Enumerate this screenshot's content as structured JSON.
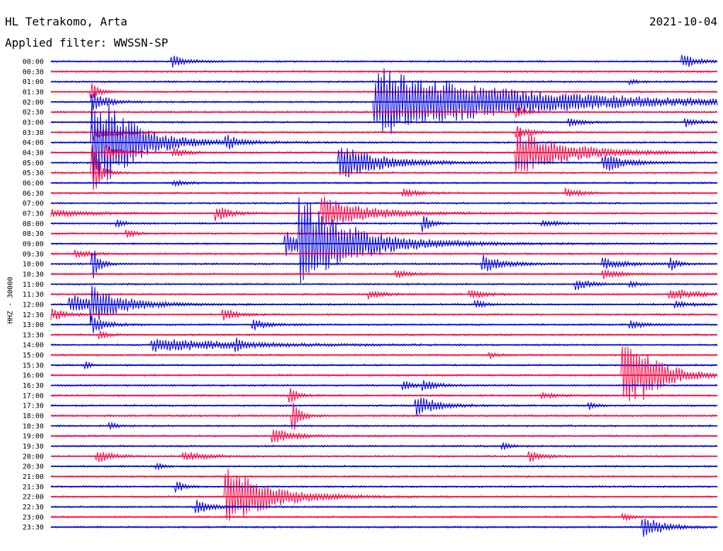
{
  "header": {
    "station": "HL Tetrakomo, Arta",
    "date": "2021-10-04",
    "filter": "Applied filter: WWSSN-SP"
  },
  "chart_data": {
    "type": "line",
    "title": "HL Tetrakomo, Arta",
    "ylabel": "HHZ - 30000",
    "row_labels": [
      "00:00",
      "00:30",
      "01:00",
      "01:30",
      "02:00",
      "02:30",
      "03:00",
      "03:30",
      "04:00",
      "04:30",
      "05:00",
      "05:30",
      "06:00",
      "06:30",
      "07:00",
      "07:30",
      "08:00",
      "08:30",
      "09:00",
      "09:30",
      "10:00",
      "10:30",
      "11:00",
      "11:30",
      "12:00",
      "12:30",
      "13:00",
      "13:30",
      "14:00",
      "15:00",
      "15:30",
      "16:00",
      "16:30",
      "17:00",
      "17:30",
      "18:00",
      "18:30",
      "19:00",
      "19:30",
      "20:00",
      "20:30",
      "21:00",
      "21:30",
      "22:00",
      "22:30",
      "23:00",
      "23:30"
    ],
    "colors": [
      "#0000e0",
      "#ff0040"
    ],
    "x_range_minutes": [
      0,
      30
    ],
    "events": [
      {
        "row": 0,
        "t": 0.183,
        "amp": 8,
        "dur": 0.02
      },
      {
        "row": 0,
        "t": 0.95,
        "amp": 9,
        "dur": 0.02
      },
      {
        "row": 2,
        "t": 0.87,
        "amp": 3,
        "dur": 0.01
      },
      {
        "row": 3,
        "t": 0.062,
        "amp": 12,
        "dur": 0.01
      },
      {
        "row": 4,
        "t": 0.487,
        "amp": 50,
        "dur": 0.2
      },
      {
        "row": 4,
        "t": 0.065,
        "amp": 15,
        "dur": 0.02
      },
      {
        "row": 5,
        "t": 0.7,
        "amp": 10,
        "dur": 0.01
      },
      {
        "row": 6,
        "t": 0.78,
        "amp": 5,
        "dur": 0.02
      },
      {
        "row": 6,
        "t": 0.955,
        "amp": 6,
        "dur": 0.02
      },
      {
        "row": 7,
        "t": 0.064,
        "amp": 12,
        "dur": 0.03
      },
      {
        "row": 7,
        "t": 0.7,
        "amp": 8,
        "dur": 0.02
      },
      {
        "row": 8,
        "t": 0.064,
        "amp": 60,
        "dur": 0.06
      },
      {
        "row": 8,
        "t": 0.087,
        "amp": 18,
        "dur": 0.03
      },
      {
        "row": 8,
        "t": 0.265,
        "amp": 8,
        "dur": 0.02
      },
      {
        "row": 9,
        "t": 0.7,
        "amp": 35,
        "dur": 0.07
      },
      {
        "row": 9,
        "t": 0.085,
        "amp": 10,
        "dur": 0.02
      },
      {
        "row": 9,
        "t": 0.185,
        "amp": 6,
        "dur": 0.02
      },
      {
        "row": 10,
        "t": 0.435,
        "amp": 25,
        "dur": 0.06
      },
      {
        "row": 10,
        "t": 0.83,
        "amp": 14,
        "dur": 0.03
      },
      {
        "row": 11,
        "t": 0.065,
        "amp": 40,
        "dur": 0.01
      },
      {
        "row": 12,
        "t": 0.185,
        "amp": 4,
        "dur": 0.02
      },
      {
        "row": 13,
        "t": 0.53,
        "amp": 6,
        "dur": 0.02
      },
      {
        "row": 13,
        "t": 0.775,
        "amp": 6,
        "dur": 0.02
      },
      {
        "row": 15,
        "t": 0.003,
        "amp": 5,
        "dur": 0.05
      },
      {
        "row": 15,
        "t": 0.41,
        "amp": 25,
        "dur": 0.06
      },
      {
        "row": 15,
        "t": 0.25,
        "amp": 10,
        "dur": 0.02
      },
      {
        "row": 16,
        "t": 0.1,
        "amp": 5,
        "dur": 0.01
      },
      {
        "row": 16,
        "t": 0.56,
        "amp": 12,
        "dur": 0.01
      },
      {
        "row": 16,
        "t": 0.74,
        "amp": 5,
        "dur": 0.02
      },
      {
        "row": 17,
        "t": 0.115,
        "amp": 7,
        "dur": 0.01
      },
      {
        "row": 18,
        "t": 0.375,
        "amp": 60,
        "dur": 0.08
      },
      {
        "row": 18,
        "t": 0.355,
        "amp": 18,
        "dur": 0.04
      },
      {
        "row": 19,
        "t": 0.04,
        "amp": 5,
        "dur": 0.02
      },
      {
        "row": 20,
        "t": 0.065,
        "amp": 20,
        "dur": 0.01
      },
      {
        "row": 20,
        "t": 0.65,
        "amp": 12,
        "dur": 0.03
      },
      {
        "row": 20,
        "t": 0.83,
        "amp": 8,
        "dur": 0.03
      },
      {
        "row": 20,
        "t": 0.93,
        "amp": 10,
        "dur": 0.01
      },
      {
        "row": 21,
        "t": 0.52,
        "amp": 5,
        "dur": 0.02
      },
      {
        "row": 21,
        "t": 0.83,
        "amp": 8,
        "dur": 0.02
      },
      {
        "row": 22,
        "t": 0.79,
        "amp": 8,
        "dur": 0.02
      },
      {
        "row": 22,
        "t": 0.87,
        "amp": 5,
        "dur": 0.01
      },
      {
        "row": 23,
        "t": 0.48,
        "amp": 6,
        "dur": 0.02
      },
      {
        "row": 23,
        "t": 0.63,
        "amp": 6,
        "dur": 0.02
      },
      {
        "row": 23,
        "t": 0.93,
        "amp": 8,
        "dur": 0.04
      },
      {
        "row": 24,
        "t": 0.03,
        "amp": 14,
        "dur": 0.04
      },
      {
        "row": 24,
        "t": 0.062,
        "amp": 20,
        "dur": 0.05
      },
      {
        "row": 24,
        "t": 0.64,
        "amp": 6,
        "dur": 0.01
      },
      {
        "row": 24,
        "t": 0.94,
        "amp": 5,
        "dur": 0.02
      },
      {
        "row": 25,
        "t": 0.003,
        "amp": 8,
        "dur": 0.02
      },
      {
        "row": 25,
        "t": 0.26,
        "amp": 8,
        "dur": 0.02
      },
      {
        "row": 26,
        "t": 0.065,
        "amp": 12,
        "dur": 0.02
      },
      {
        "row": 26,
        "t": 0.305,
        "amp": 8,
        "dur": 0.02
      },
      {
        "row": 26,
        "t": 0.87,
        "amp": 6,
        "dur": 0.02
      },
      {
        "row": 27,
        "t": 0.075,
        "amp": 6,
        "dur": 0.01
      },
      {
        "row": 28,
        "t": 0.155,
        "amp": 10,
        "dur": 0.12
      },
      {
        "row": 28,
        "t": 0.28,
        "amp": 6,
        "dur": 0.01
      },
      {
        "row": 29,
        "t": 0.66,
        "amp": 4,
        "dur": 0.01
      },
      {
        "row": 30,
        "t": 0.055,
        "amp": 6,
        "dur": 0.005
      },
      {
        "row": 31,
        "t": 0.86,
        "amp": 50,
        "dur": 0.04
      },
      {
        "row": 31,
        "t": 0.89,
        "amp": 12,
        "dur": 0.04
      },
      {
        "row": 32,
        "t": 0.53,
        "amp": 6,
        "dur": 0.02
      },
      {
        "row": 32,
        "t": 0.56,
        "amp": 6,
        "dur": 0.02
      },
      {
        "row": 33,
        "t": 0.36,
        "amp": 12,
        "dur": 0.01
      },
      {
        "row": 33,
        "t": 0.74,
        "amp": 4,
        "dur": 0.02
      },
      {
        "row": 34,
        "t": 0.55,
        "amp": 15,
        "dur": 0.03
      },
      {
        "row": 34,
        "t": 0.81,
        "amp": 5,
        "dur": 0.01
      },
      {
        "row": 35,
        "t": 0.365,
        "amp": 22,
        "dur": 0.01
      },
      {
        "row": 36,
        "t": 0.09,
        "amp": 4,
        "dur": 0.01
      },
      {
        "row": 37,
        "t": 0.335,
        "amp": 10,
        "dur": 0.03
      },
      {
        "row": 38,
        "t": 0.68,
        "amp": 5,
        "dur": 0.01
      },
      {
        "row": 39,
        "t": 0.072,
        "amp": 8,
        "dur": 0.02
      },
      {
        "row": 39,
        "t": 0.2,
        "amp": 7,
        "dur": 0.03
      },
      {
        "row": 39,
        "t": 0.72,
        "amp": 7,
        "dur": 0.02
      },
      {
        "row": 40,
        "t": 0.16,
        "amp": 4,
        "dur": 0.01
      },
      {
        "row": 42,
        "t": 0.19,
        "amp": 8,
        "dur": 0.01
      },
      {
        "row": 43,
        "t": 0.265,
        "amp": 45,
        "dur": 0.06
      },
      {
        "row": 44,
        "t": 0.22,
        "amp": 10,
        "dur": 0.02
      },
      {
        "row": 45,
        "t": 0.86,
        "amp": 5,
        "dur": 0.01
      },
      {
        "row": 46,
        "t": 0.89,
        "amp": 15,
        "dur": 0.03
      }
    ]
  }
}
